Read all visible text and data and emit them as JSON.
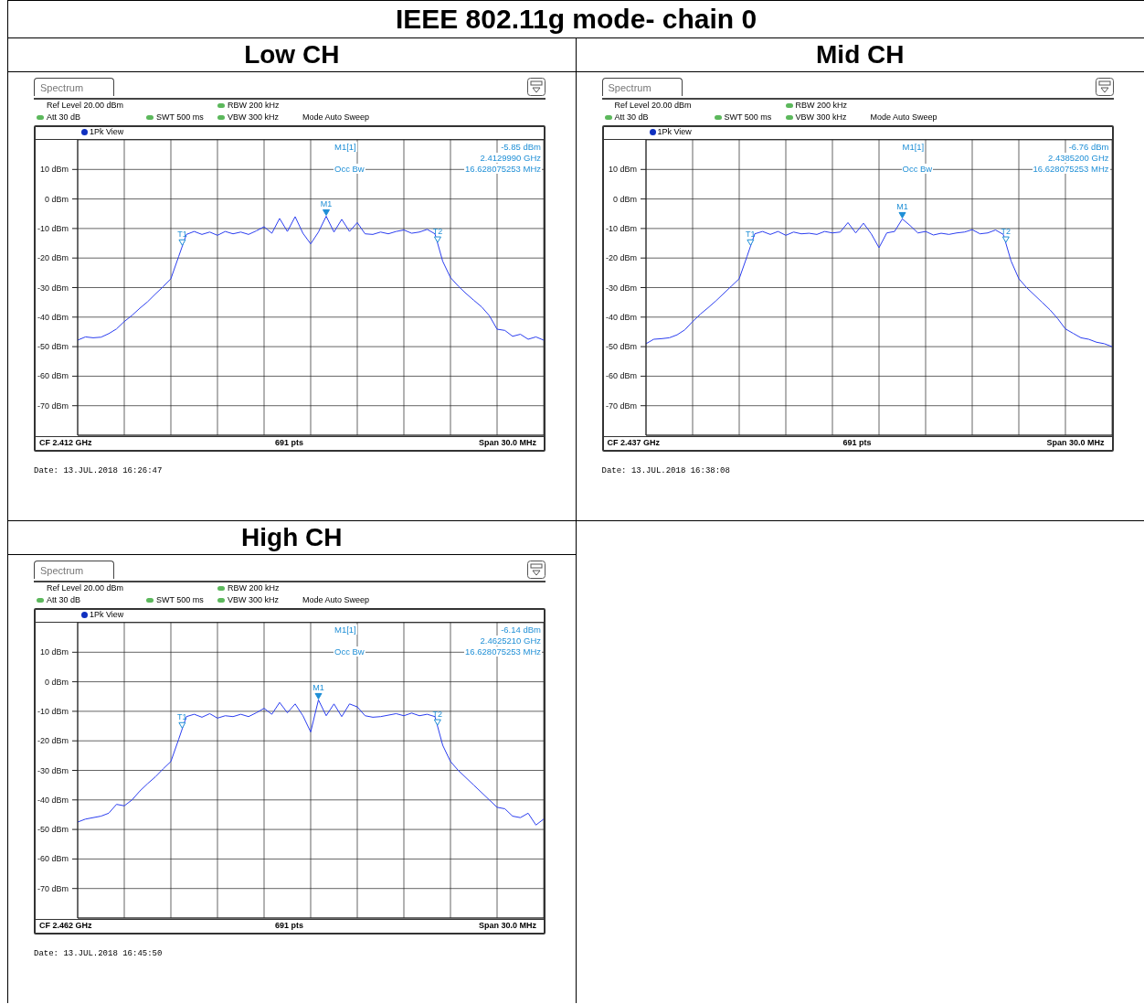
{
  "chart_data": [
    {
      "type": "line",
      "title": "IEEE 802.11g mode- chain 0",
      "subtitle": "Low CH",
      "color": "#2b3ef0",
      "grid": true,
      "tick_labels": "y",
      "ylim": [
        -80,
        20
      ],
      "yticks": [
        {
          "value": -70,
          "label": "-70 dBm"
        },
        {
          "value": -60,
          "label": "-60 dBm"
        },
        {
          "value": -50,
          "label": "-50 dBm"
        },
        {
          "value": -40,
          "label": "-40 dBm"
        },
        {
          "value": -30,
          "label": "-30 dBm"
        },
        {
          "value": -20,
          "label": "-20 dBm"
        },
        {
          "value": -10,
          "label": "-10 dBm"
        },
        {
          "value": 0,
          "label": "0 dBm"
        },
        {
          "value": 10,
          "label": "10 dBm"
        }
      ],
      "categories": [
        null,
        null,
        null,
        null,
        null,
        null,
        null,
        null,
        null,
        null,
        null,
        null,
        null,
        null,
        null,
        null,
        null,
        null,
        null,
        null,
        null,
        null,
        null,
        null,
        null,
        null,
        null,
        null,
        null,
        null,
        null,
        null,
        null,
        null,
        null,
        null,
        null,
        null,
        null,
        null,
        null,
        null,
        null,
        null,
        null,
        null,
        null,
        null,
        null,
        null,
        null,
        null,
        null,
        null,
        null,
        null,
        null,
        null,
        null,
        null,
        null
      ],
      "values": [
        -47.8,
        -46.7,
        -47.0,
        -46.8,
        -45.6,
        -44.0,
        -41.5,
        -39.4,
        -37.0,
        -34.8,
        -32.2,
        -29.7,
        -27.0,
        -19.5,
        -12.0,
        -11.0,
        -12.0,
        -11.2,
        -12.3,
        -11.0,
        -11.8,
        -11.2,
        -12.0,
        -10.8,
        -9.4,
        -11.6,
        -6.6,
        -11.0,
        -6.0,
        -11.6,
        -15.2,
        -11.2,
        -5.85,
        -11.2,
        -6.9,
        -11.0,
        -8.0,
        -11.8,
        -12.0,
        -11.2,
        -11.8,
        -11.0,
        -10.5,
        -11.6,
        -11.2,
        -10.3,
        -11.8,
        -21.1,
        -26.6,
        -29.5,
        -32.0,
        -34.3,
        -36.5,
        -39.5,
        -44.1,
        -44.5,
        -46.5,
        -45.8,
        -47.5,
        -46.7,
        -47.8
      ],
      "annotations": [
        "Spectrum",
        "Ref Level 20.00 dBm",
        "Att 30 dB",
        "SWT 500 ms",
        "RBW 200 kHz",
        "VBW 300 kHz",
        "Mode Auto Sweep",
        "1Pk View",
        "M1[1]",
        "-5.85 dBm",
        "2.4129990 GHz",
        "Occ Bw",
        "16.628075253 MHz",
        "CF 2.412 GHz",
        "691 pts",
        "Span 30.0 MHz",
        "Date: 13.JUL.2018 16:26:47",
        {
          "text": "M1",
          "y": -5.85
        },
        {
          "text": "T1",
          "y": -16
        },
        {
          "text": "T2",
          "y": -15
        }
      ]
    },
    {
      "type": "line",
      "title": "Mid CH",
      "color": "#2b3ef0",
      "grid": true,
      "tick_labels": "y",
      "ylim": [
        -80,
        20
      ],
      "yticks": [
        {
          "value": -70,
          "label": "-70 dBm"
        },
        {
          "value": -60,
          "label": "-60 dBm"
        },
        {
          "value": -50,
          "label": "-50 dBm"
        },
        {
          "value": -40,
          "label": "-40 dBm"
        },
        {
          "value": -30,
          "label": "-30 dBm"
        },
        {
          "value": -20,
          "label": "-20 dBm"
        },
        {
          "value": -10,
          "label": "-10 dBm"
        },
        {
          "value": 0,
          "label": "0 dBm"
        },
        {
          "value": 10,
          "label": "10 dBm"
        }
      ],
      "categories": [
        null,
        null,
        null,
        null,
        null,
        null,
        null,
        null,
        null,
        null,
        null,
        null,
        null,
        null,
        null,
        null,
        null,
        null,
        null,
        null,
        null,
        null,
        null,
        null,
        null,
        null,
        null,
        null,
        null,
        null,
        null,
        null,
        null,
        null,
        null,
        null,
        null,
        null,
        null,
        null,
        null,
        null,
        null,
        null,
        null,
        null,
        null,
        null,
        null,
        null,
        null,
        null,
        null,
        null,
        null,
        null,
        null,
        null,
        null,
        null,
        null
      ],
      "values": [
        -49.0,
        -47.5,
        -47.3,
        -47.0,
        -46.0,
        -44.3,
        -41.5,
        -39.0,
        -36.8,
        -34.5,
        -32.0,
        -29.5,
        -27.0,
        -19.5,
        -11.8,
        -11.0,
        -12.0,
        -11.0,
        -12.3,
        -11.2,
        -11.8,
        -11.6,
        -12.0,
        -11.0,
        -11.5,
        -11.2,
        -8.0,
        -11.5,
        -8.2,
        -11.8,
        -16.5,
        -11.5,
        -11.0,
        -6.76,
        -9.0,
        -11.5,
        -11.0,
        -12.2,
        -11.6,
        -12.0,
        -11.5,
        -11.2,
        -10.4,
        -11.8,
        -11.5,
        -10.5,
        -12.0,
        -21.0,
        -27.0,
        -30.0,
        -32.5,
        -35.0,
        -37.5,
        -40.5,
        -44.0,
        -45.5,
        -47.0,
        -47.5,
        -48.5,
        -49.0,
        -50.0
      ],
      "annotations": [
        "Spectrum",
        "Ref Level 20.00 dBm",
        "Att 30 dB",
        "SWT 500 ms",
        "RBW 200 kHz",
        "VBW 300 kHz",
        "Mode Auto Sweep",
        "1Pk View",
        "M1[1]",
        "-6.76 dBm",
        "2.4385200 GHz",
        "Occ Bw",
        "16.628075253 MHz",
        "CF 2.437 GHz",
        "691 pts",
        "Span 30.0 MHz",
        "Date: 13.JUL.2018 16:38:08",
        {
          "text": "M1",
          "y": -6.76
        },
        {
          "text": "T1",
          "y": -16
        },
        {
          "text": "T2",
          "y": -15
        }
      ]
    },
    {
      "type": "line",
      "title": "High CH",
      "color": "#2b3ef0",
      "grid": true,
      "tick_labels": "y",
      "ylim": [
        -80,
        20
      ],
      "yticks": [
        {
          "value": -70,
          "label": "-70 dBm"
        },
        {
          "value": -60,
          "label": "-60 dBm"
        },
        {
          "value": -50,
          "label": "-50 dBm"
        },
        {
          "value": -40,
          "label": "-40 dBm"
        },
        {
          "value": -30,
          "label": "-30 dBm"
        },
        {
          "value": -20,
          "label": "-20 dBm"
        },
        {
          "value": -10,
          "label": "-10 dBm"
        },
        {
          "value": 0,
          "label": "0 dBm"
        },
        {
          "value": 10,
          "label": "10 dBm"
        }
      ],
      "categories": [
        null,
        null,
        null,
        null,
        null,
        null,
        null,
        null,
        null,
        null,
        null,
        null,
        null,
        null,
        null,
        null,
        null,
        null,
        null,
        null,
        null,
        null,
        null,
        null,
        null,
        null,
        null,
        null,
        null,
        null,
        null,
        null,
        null,
        null,
        null,
        null,
        null,
        null,
        null,
        null,
        null,
        null,
        null,
        null,
        null,
        null,
        null,
        null,
        null,
        null,
        null,
        null,
        null,
        null,
        null,
        null,
        null,
        null,
        null,
        null,
        null
      ],
      "values": [
        -47.5,
        -46.5,
        -46.0,
        -45.5,
        -44.5,
        -41.5,
        -42.0,
        -40.0,
        -37.0,
        -34.5,
        -32.2,
        -29.5,
        -27.0,
        -19.5,
        -11.8,
        -11.0,
        -12.0,
        -10.8,
        -12.3,
        -11.5,
        -11.8,
        -11.0,
        -11.8,
        -10.5,
        -9.0,
        -11.0,
        -7.0,
        -10.5,
        -7.5,
        -11.5,
        -17.0,
        -6.14,
        -11.5,
        -7.5,
        -11.8,
        -7.5,
        -8.5,
        -11.5,
        -12.0,
        -11.8,
        -11.3,
        -10.8,
        -11.5,
        -10.6,
        -11.5,
        -11.0,
        -11.8,
        -21.5,
        -27.0,
        -30.0,
        -32.5,
        -35.0,
        -37.5,
        -40.0,
        -42.5,
        -43.0,
        -45.5,
        -46.0,
        -44.5,
        -48.5,
        -46.5
      ],
      "annotations": [
        "Spectrum",
        "Ref Level 20.00 dBm",
        "Att 30 dB",
        "SWT 500 ms",
        "RBW 200 kHz",
        "VBW 300 kHz",
        "Mode Auto Sweep",
        "1Pk View",
        "M1[1]",
        "-6.14 dBm",
        "2.4625210 GHz",
        "Occ Bw",
        "16.628075253 MHz",
        "CF 2.462 GHz",
        "691 pts",
        "Span 30.0 MHz",
        "Date: 13.JUL.2018 16:45:50",
        {
          "text": "M1",
          "y": -6.14
        },
        {
          "text": "T1",
          "y": -16
        },
        {
          "text": "T2",
          "y": -15
        }
      ]
    }
  ]
}
